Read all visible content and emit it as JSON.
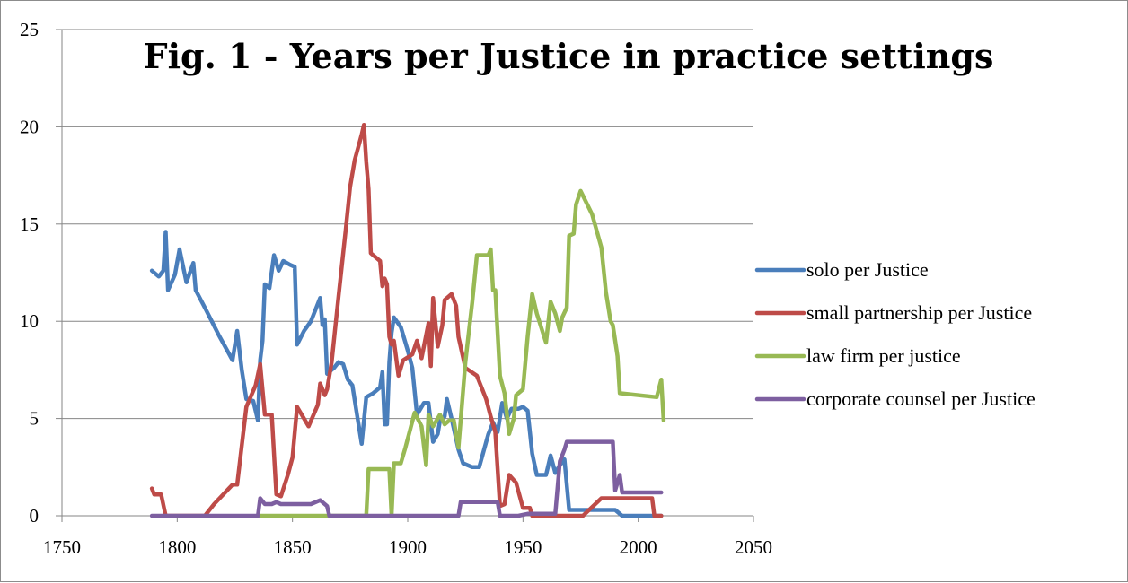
{
  "chart_data": {
    "type": "line",
    "title": "Fig. 1 - Years per Justice in practice settings",
    "xlabel": "",
    "ylabel": "",
    "xlim": [
      1750,
      2050
    ],
    "ylim": [
      0,
      25
    ],
    "x_ticks": [
      "1750",
      "1800",
      "1850",
      "1900",
      "1950",
      "2000",
      "2050"
    ],
    "y_ticks": [
      "0",
      "5",
      "10",
      "15",
      "20",
      "25"
    ],
    "grid": "horizontal",
    "legend_position": "right",
    "series": [
      {
        "name": "solo per Justice",
        "color": "#4a7ebb",
        "points": [
          [
            1789,
            12.6
          ],
          [
            1792,
            12.3
          ],
          [
            1794,
            12.6
          ],
          [
            1795,
            14.6
          ],
          [
            1796,
            11.6
          ],
          [
            1799,
            12.4
          ],
          [
            1801,
            13.7
          ],
          [
            1804,
            12.0
          ],
          [
            1807,
            13.0
          ],
          [
            1808,
            11.6
          ],
          [
            1812,
            10.7
          ],
          [
            1818,
            9.3
          ],
          [
            1824,
            8.0
          ],
          [
            1826,
            9.5
          ],
          [
            1828,
            7.5
          ],
          [
            1830,
            6.0
          ],
          [
            1833,
            5.9
          ],
          [
            1835,
            4.9
          ],
          [
            1836,
            8.0
          ],
          [
            1837,
            9.0
          ],
          [
            1838,
            11.9
          ],
          [
            1840,
            11.7
          ],
          [
            1842,
            13.4
          ],
          [
            1844,
            12.6
          ],
          [
            1846,
            13.1
          ],
          [
            1849,
            12.9
          ],
          [
            1851,
            12.8
          ],
          [
            1852,
            8.8
          ],
          [
            1855,
            9.5
          ],
          [
            1858,
            10.0
          ],
          [
            1862,
            11.2
          ],
          [
            1863,
            9.8
          ],
          [
            1864,
            10.1
          ],
          [
            1865,
            7.3
          ],
          [
            1868,
            7.6
          ],
          [
            1870,
            7.9
          ],
          [
            1872,
            7.8
          ],
          [
            1874,
            7.0
          ],
          [
            1876,
            6.7
          ],
          [
            1878,
            5.2
          ],
          [
            1880,
            3.7
          ],
          [
            1882,
            6.1
          ],
          [
            1885,
            6.3
          ],
          [
            1888,
            6.6
          ],
          [
            1889,
            7.4
          ],
          [
            1890,
            4.7
          ],
          [
            1891,
            4.7
          ],
          [
            1892,
            7.9
          ],
          [
            1893,
            9.4
          ],
          [
            1894,
            10.2
          ],
          [
            1897,
            9.7
          ],
          [
            1900,
            8.5
          ],
          [
            1902,
            7.6
          ],
          [
            1904,
            5.2
          ],
          [
            1907,
            5.8
          ],
          [
            1909,
            5.8
          ],
          [
            1911,
            3.8
          ],
          [
            1913,
            4.2
          ],
          [
            1914,
            4.9
          ],
          [
            1916,
            5.1
          ],
          [
            1917,
            6.0
          ],
          [
            1919,
            5.0
          ],
          [
            1922,
            3.4
          ],
          [
            1924,
            2.7
          ],
          [
            1928,
            2.5
          ],
          [
            1931,
            2.5
          ],
          [
            1935,
            4.2
          ],
          [
            1937,
            4.8
          ],
          [
            1939,
            4.3
          ],
          [
            1941,
            5.8
          ],
          [
            1943,
            5.0
          ],
          [
            1945,
            5.5
          ],
          [
            1948,
            5.5
          ],
          [
            1950,
            5.6
          ],
          [
            1952,
            5.4
          ],
          [
            1954,
            3.2
          ],
          [
            1956,
            2.1
          ],
          [
            1960,
            2.1
          ],
          [
            1962,
            3.1
          ],
          [
            1964,
            2.2
          ],
          [
            1966,
            2.6
          ],
          [
            1968,
            2.9
          ],
          [
            1970,
            0.3
          ],
          [
            1980,
            0.3
          ],
          [
            1990,
            0.3
          ],
          [
            1993,
            0.0
          ],
          [
            2010,
            0.0
          ]
        ]
      },
      {
        "name": "small partnership per Justice",
        "color": "#be4b48",
        "points": [
          [
            1789,
            1.4
          ],
          [
            1790,
            1.1
          ],
          [
            1793,
            1.1
          ],
          [
            1795,
            0.0
          ],
          [
            1812,
            0.0
          ],
          [
            1816,
            0.6
          ],
          [
            1824,
            1.6
          ],
          [
            1826,
            1.6
          ],
          [
            1830,
            5.6
          ],
          [
            1834,
            6.7
          ],
          [
            1836,
            7.8
          ],
          [
            1838,
            5.2
          ],
          [
            1841,
            5.2
          ],
          [
            1843,
            1.1
          ],
          [
            1845,
            1.0
          ],
          [
            1848,
            2.1
          ],
          [
            1850,
            3.0
          ],
          [
            1852,
            5.6
          ],
          [
            1857,
            4.6
          ],
          [
            1861,
            5.7
          ],
          [
            1862,
            6.8
          ],
          [
            1864,
            6.2
          ],
          [
            1865,
            6.5
          ],
          [
            1867,
            7.9
          ],
          [
            1870,
            11.3
          ],
          [
            1873,
            14.6
          ],
          [
            1875,
            16.9
          ],
          [
            1877,
            18.3
          ],
          [
            1880,
            19.6
          ],
          [
            1881,
            20.1
          ],
          [
            1882,
            18.2
          ],
          [
            1883,
            16.8
          ],
          [
            1884,
            13.5
          ],
          [
            1888,
            13.1
          ],
          [
            1889,
            11.8
          ],
          [
            1890,
            12.2
          ],
          [
            1891,
            11.9
          ],
          [
            1892,
            9.2
          ],
          [
            1893,
            8.8
          ],
          [
            1894,
            9.0
          ],
          [
            1896,
            7.2
          ],
          [
            1898,
            8.0
          ],
          [
            1902,
            8.3
          ],
          [
            1904,
            9.0
          ],
          [
            1906,
            8.1
          ],
          [
            1909,
            9.9
          ],
          [
            1910,
            7.7
          ],
          [
            1911,
            11.2
          ],
          [
            1913,
            8.7
          ],
          [
            1915,
            9.8
          ],
          [
            1916,
            11.1
          ],
          [
            1919,
            11.4
          ],
          [
            1921,
            10.8
          ],
          [
            1922,
            9.2
          ],
          [
            1925,
            7.6
          ],
          [
            1930,
            7.2
          ],
          [
            1934,
            6.0
          ],
          [
            1936,
            5.1
          ],
          [
            1938,
            4.3
          ],
          [
            1940,
            0.5
          ],
          [
            1942,
            0.6
          ],
          [
            1944,
            2.1
          ],
          [
            1947,
            1.7
          ],
          [
            1950,
            0.4
          ],
          [
            1953,
            0.4
          ],
          [
            1954,
            0.0
          ],
          [
            1976,
            0.0
          ],
          [
            1984,
            0.9
          ],
          [
            2006,
            0.9
          ],
          [
            2007,
            0.0
          ],
          [
            2010,
            0.0
          ]
        ]
      },
      {
        "name": "law firm per justice",
        "color": "#98b954",
        "points": [
          [
            1836,
            0.0
          ],
          [
            1864,
            0.0
          ],
          [
            1882,
            0.0
          ],
          [
            1883,
            2.4
          ],
          [
            1892,
            2.4
          ],
          [
            1893,
            0.0
          ],
          [
            1894,
            2.7
          ],
          [
            1897,
            2.7
          ],
          [
            1899,
            3.5
          ],
          [
            1903,
            5.3
          ],
          [
            1906,
            4.6
          ],
          [
            1908,
            2.6
          ],
          [
            1909,
            5.2
          ],
          [
            1911,
            4.6
          ],
          [
            1914,
            5.2
          ],
          [
            1916,
            4.7
          ],
          [
            1918,
            4.9
          ],
          [
            1920,
            4.9
          ],
          [
            1922,
            3.5
          ],
          [
            1925,
            7.9
          ],
          [
            1928,
            11.0
          ],
          [
            1930,
            13.4
          ],
          [
            1935,
            13.4
          ],
          [
            1936,
            13.7
          ],
          [
            1937,
            11.6
          ],
          [
            1938,
            11.6
          ],
          [
            1940,
            7.2
          ],
          [
            1942,
            6.3
          ],
          [
            1944,
            4.2
          ],
          [
            1946,
            5.0
          ],
          [
            1947,
            6.2
          ],
          [
            1950,
            6.5
          ],
          [
            1952,
            9.2
          ],
          [
            1954,
            11.4
          ],
          [
            1956,
            10.4
          ],
          [
            1960,
            8.9
          ],
          [
            1962,
            11.0
          ],
          [
            1964,
            10.4
          ],
          [
            1966,
            9.5
          ],
          [
            1967,
            10.2
          ],
          [
            1969,
            10.7
          ],
          [
            1970,
            14.4
          ],
          [
            1972,
            14.5
          ],
          [
            1973,
            16.0
          ],
          [
            1975,
            16.7
          ],
          [
            1980,
            15.5
          ],
          [
            1984,
            13.8
          ],
          [
            1986,
            11.5
          ],
          [
            1988,
            10.0
          ],
          [
            1989,
            9.8
          ],
          [
            1991,
            8.2
          ],
          [
            1992,
            6.3
          ],
          [
            2008,
            6.1
          ],
          [
            2010,
            7.0
          ],
          [
            2011,
            4.9
          ]
        ]
      },
      {
        "name": "corporate counsel per Justice",
        "color": "#7d5fa0",
        "points": [
          [
            1789,
            0.0
          ],
          [
            1835,
            0.0
          ],
          [
            1836,
            0.9
          ],
          [
            1838,
            0.6
          ],
          [
            1841,
            0.6
          ],
          [
            1843,
            0.7
          ],
          [
            1845,
            0.6
          ],
          [
            1858,
            0.6
          ],
          [
            1862,
            0.8
          ],
          [
            1865,
            0.5
          ],
          [
            1866,
            0.0
          ],
          [
            1922,
            0.0
          ],
          [
            1923,
            0.7
          ],
          [
            1939,
            0.7
          ],
          [
            1940,
            0.0
          ],
          [
            1948,
            0.0
          ],
          [
            1952,
            0.1
          ],
          [
            1964,
            0.1
          ],
          [
            1966,
            2.8
          ],
          [
            1968,
            3.4
          ],
          [
            1969,
            3.8
          ],
          [
            1989,
            3.8
          ],
          [
            1990,
            1.3
          ],
          [
            1992,
            2.1
          ],
          [
            1993,
            1.2
          ],
          [
            2010,
            1.2
          ]
        ]
      }
    ]
  }
}
